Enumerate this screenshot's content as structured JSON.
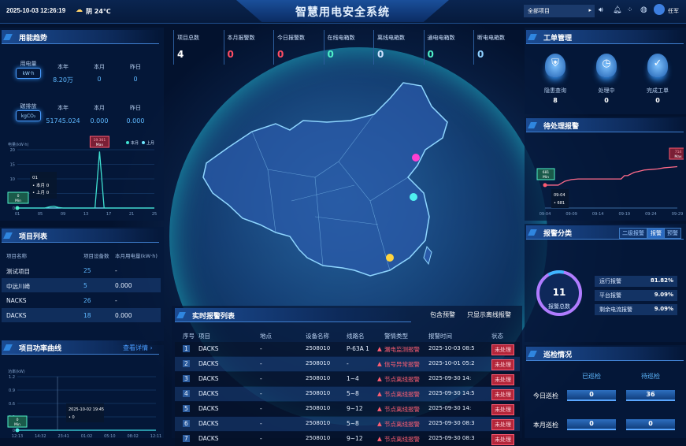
{
  "header": {
    "datetime": "2025-10-03 12:26:19",
    "weather": "阴 24℃",
    "title": "智慧用电安全系统",
    "project_select": "全部项目",
    "user": "任军",
    "icons": [
      "volume-icon",
      "bell-icon",
      "apps-grid-icon",
      "globe-icon",
      "user-avatar-icon"
    ]
  },
  "energy": {
    "title": "用能趋势",
    "rows": [
      {
        "name": "用电量",
        "unit": "kW·h",
        "cols": [
          {
            "label": "本年",
            "value": "8.20万"
          },
          {
            "label": "本月",
            "value": "0"
          },
          {
            "label": "昨日",
            "value": "0"
          }
        ]
      },
      {
        "name": "碳排放",
        "unit": "kgCO₂",
        "cols": [
          {
            "label": "本年",
            "value": "51745.024"
          },
          {
            "label": "本月",
            "value": "0.000"
          },
          {
            "label": "昨日",
            "value": "0.000"
          }
        ]
      }
    ]
  },
  "kpis": [
    {
      "label": "项目总数",
      "value": "4",
      "color": "#ffffff"
    },
    {
      "label": "本月报警数",
      "value": "0",
      "color": "#ff4d64"
    },
    {
      "label": "今日报警数",
      "value": "0",
      "color": "#ff4d64"
    },
    {
      "label": "在线电箱数",
      "value": "0",
      "color": "#4ff0c8"
    },
    {
      "label": "离线电箱数",
      "value": "0",
      "color": "#cfe3ff"
    },
    {
      "label": "通电电箱数",
      "value": "0",
      "color": "#4ff0c8"
    },
    {
      "label": "断电电箱数",
      "value": "0",
      "color": "#8fd0ff"
    }
  ],
  "project_list": {
    "title": "项目列表",
    "columns": [
      "项目名称",
      "项目设备数",
      "本月用电量(kW·h)"
    ],
    "rows": [
      [
        "测试项目",
        "25",
        "-"
      ],
      [
        "中远川崎",
        "5",
        "0.000"
      ],
      [
        "NACKS",
        "26",
        "-"
      ],
      [
        "DACKS",
        "18",
        "0.000"
      ]
    ]
  },
  "power_curve": {
    "title": "项目功率曲线",
    "link": "查看详情",
    "tooltip_time": "2025-10-02 19:45",
    "tooltip_value": "0",
    "min_label": "0",
    "min_tag": "Min"
  },
  "work_orders": {
    "title": "工单管理",
    "items": [
      {
        "label": "隐患查询",
        "value": "8",
        "icon": "shield-icon"
      },
      {
        "label": "处理中",
        "value": "0",
        "icon": "clock-icon"
      },
      {
        "label": "完成工单",
        "value": "0",
        "icon": "check-icon"
      }
    ]
  },
  "pending": {
    "title": "待处理报警",
    "tooltip_date": "09-04",
    "tooltip_value": "681",
    "min_label": "681",
    "max_label": "714",
    "min_tag": "Min",
    "max_tag": "Max"
  },
  "alarm_class": {
    "title": "报警分类",
    "tabs": [
      "二级报警",
      "报警",
      "预警"
    ],
    "active_tab": 1,
    "total": "11",
    "total_label": "报警总数",
    "items": [
      {
        "label": "运行报警",
        "pct": "81.82%"
      },
      {
        "label": "平台报警",
        "pct": "9.09%"
      },
      {
        "label": "剩余电流报警",
        "pct": "9.09%"
      }
    ]
  },
  "inspection": {
    "title": "巡检情况",
    "cols": [
      "已巡检",
      "待巡检"
    ],
    "rows": [
      {
        "label": "今日巡检",
        "values": [
          "0",
          "36"
        ]
      },
      {
        "label": "本月巡检",
        "values": [
          "0",
          "0"
        ]
      }
    ]
  },
  "alarm_list": {
    "title": "实时报警列表",
    "filters": [
      "包含预警",
      "只显示离线报警"
    ],
    "columns": [
      "序号",
      "项目",
      "地点",
      "设备名称",
      "线路名",
      "警情类型",
      "报警时间",
      "状态"
    ],
    "rows": [
      [
        "1",
        "DACKS",
        "-",
        "2508010",
        "P-63A  1",
        "漏电监测报警",
        "2025-10-03 08:5",
        "未处理"
      ],
      [
        "2",
        "DACKS",
        "-",
        "2508010",
        "-",
        "信号异常报警",
        "2025-10-01 05:2",
        "未处理"
      ],
      [
        "3",
        "DACKS",
        "-",
        "2508010",
        "1~4",
        "节点离线报警",
        "2025-09-30 14:",
        "未处理"
      ],
      [
        "4",
        "DACKS",
        "-",
        "2508010",
        "5~8",
        "节点离线报警",
        "2025-09-30 14:5",
        "未处理"
      ],
      [
        "5",
        "DACKS",
        "-",
        "2508010",
        "9~12",
        "节点离线报警",
        "2025-09-30 14:",
        "未处理"
      ],
      [
        "6",
        "DACKS",
        "-",
        "2508010",
        "5~8",
        "节点离线报警",
        "2025-09-30 08:3",
        "未处理"
      ],
      [
        "7",
        "DACKS",
        "-",
        "2508010",
        "9~12",
        "节点离线报警",
        "2025-09-30 08:3",
        "未处理"
      ]
    ]
  },
  "chart_data": [
    {
      "type": "line",
      "ylabel": "电量(kW·h)",
      "ylim": [
        0,
        20
      ],
      "yticks": [
        "0",
        "5",
        "10",
        "15",
        "20"
      ],
      "xticks": [
        "01",
        "05",
        "09",
        "13",
        "17",
        "21",
        "25"
      ],
      "legend": [
        "本月",
        "上月"
      ],
      "legend_position": "top-right",
      "x": [
        1,
        2,
        3,
        4,
        5,
        6,
        7,
        8,
        9,
        10,
        11,
        12,
        13,
        14,
        15,
        16,
        17,
        18,
        19,
        20,
        21,
        22,
        23,
        24,
        25,
        26,
        27,
        28,
        29,
        30,
        31
      ],
      "series": [
        {
          "name": "本月",
          "values": [
            0,
            0,
            0,
            0,
            0,
            0,
            0,
            0.4,
            0.6,
            0.2,
            0,
            0,
            0,
            0,
            0,
            0,
            0,
            0,
            19.361,
            0,
            0,
            0,
            0,
            0,
            0,
            0,
            0,
            0,
            0,
            0,
            0
          ]
        },
        {
          "name": "上月",
          "values": [
            0,
            0,
            0,
            0,
            0,
            0,
            0,
            0,
            0,
            0,
            0,
            0,
            0,
            0,
            0,
            0,
            0,
            0,
            0,
            0,
            0,
            0,
            0,
            0,
            0,
            0,
            0,
            0,
            0,
            0,
            0
          ]
        }
      ],
      "max_label": "19.361",
      "max_tag": "Max",
      "min_label": "0",
      "min_tag": "Min",
      "tooltip": {
        "x": "01",
        "items": [
          {
            "name": "本月",
            "value": "0"
          },
          {
            "name": "上月",
            "value": "0"
          }
        ]
      },
      "colors": [
        "#3fe0d0",
        "#6ee7ff"
      ]
    },
    {
      "type": "line",
      "ylim": [
        640,
        750
      ],
      "xticks": [
        "09-04",
        "09-09",
        "09-14",
        "09-19",
        "09-24",
        "09-29"
      ],
      "x": [
        0,
        3,
        4,
        6,
        8,
        10,
        14,
        18,
        21,
        23,
        24,
        25,
        27,
        28,
        30,
        32,
        34,
        36,
        38,
        40
      ],
      "series": [
        {
          "values": [
            681,
            681,
            681,
            688,
            691,
            692,
            692,
            692,
            692,
            692,
            698,
            698,
            704,
            705,
            708,
            709,
            710,
            712,
            713,
            714
          ]
        }
      ],
      "colors": [
        "#ff6b8a"
      ]
    },
    {
      "type": "line",
      "ylabel": "功率(kW)",
      "ylim": [
        0,
        1.2
      ],
      "yticks": [
        "0",
        "0.3",
        "0.6",
        "0.9",
        "1.2"
      ],
      "xticks": [
        "12:13",
        "14:32",
        "23:41",
        "01:02",
        "05:10",
        "08:02",
        "12:11"
      ],
      "series": [
        {
          "values": [
            0,
            0,
            0,
            0,
            0,
            0,
            0,
            0,
            0,
            0,
            0,
            0,
            0
          ]
        }
      ],
      "colors": [
        "#3fe0e8"
      ]
    }
  ]
}
